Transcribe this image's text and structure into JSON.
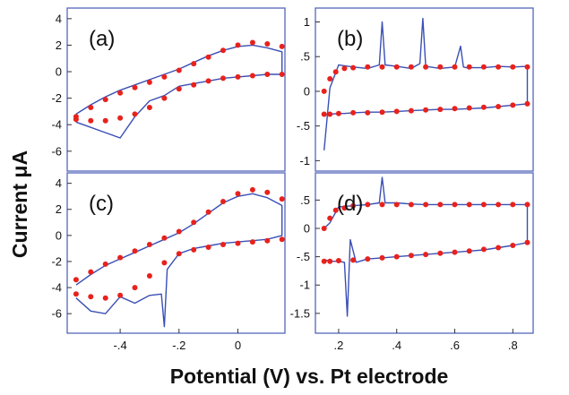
{
  "figure": {
    "ylabel": "Current μA",
    "xlabel": "Potential (V) vs. Pt electrode",
    "colors": {
      "measured": "#3a4fb5",
      "fit": "#e8211c",
      "frame": "#5566bb"
    }
  },
  "chart_data": [
    {
      "type": "line",
      "label": "(a)",
      "xlim": [
        -0.58,
        0.16
      ],
      "ylim": [
        -7.5,
        4.8
      ],
      "yticks": [
        4,
        2,
        0,
        -2,
        -4,
        -6
      ],
      "xticks": [],
      "series": [
        {
          "role": "measured",
          "style": "line",
          "x": [
            -0.55,
            -0.5,
            -0.45,
            -0.4,
            -0.35,
            -0.3,
            -0.25,
            -0.2,
            -0.15,
            -0.1,
            -0.05,
            0.0,
            0.05,
            0.1,
            0.15,
            0.15,
            0.1,
            0.05,
            0.0,
            -0.05,
            -0.1,
            -0.15,
            -0.2,
            -0.25,
            -0.3,
            -0.35,
            -0.4,
            -0.45,
            -0.5,
            -0.55
          ],
          "y": [
            -3.2,
            -2.5,
            -1.9,
            -1.4,
            -1.0,
            -0.6,
            -0.2,
            0.2,
            0.7,
            1.2,
            1.6,
            1.9,
            2.0,
            1.8,
            1.5,
            -0.2,
            -0.2,
            -0.3,
            -0.4,
            -0.5,
            -0.7,
            -0.9,
            -1.1,
            -1.8,
            -2.2,
            -3.4,
            -5.0,
            -4.6,
            -4.2,
            -3.8
          ]
        },
        {
          "role": "fit",
          "style": "dots",
          "x": [
            -0.55,
            -0.5,
            -0.45,
            -0.4,
            -0.35,
            -0.3,
            -0.25,
            -0.2,
            -0.15,
            -0.1,
            -0.05,
            0.0,
            0.05,
            0.1,
            0.15,
            0.15,
            0.1,
            0.05,
            0.0,
            -0.05,
            -0.1,
            -0.15,
            -0.2,
            -0.25,
            -0.3,
            -0.35,
            -0.4,
            -0.45,
            -0.5,
            -0.55
          ],
          "y": [
            -3.4,
            -2.7,
            -2.1,
            -1.6,
            -1.2,
            -0.8,
            -0.4,
            0.1,
            0.6,
            1.1,
            1.6,
            2.0,
            2.2,
            2.1,
            1.9,
            -0.2,
            -0.2,
            -0.3,
            -0.4,
            -0.5,
            -0.7,
            -1.0,
            -1.3,
            -2.0,
            -2.7,
            -3.2,
            -3.5,
            -3.7,
            -3.7,
            -3.6
          ]
        }
      ]
    },
    {
      "type": "line",
      "label": "(b)",
      "xlim": [
        0.12,
        0.87
      ],
      "ylim": [
        -1.15,
        1.2
      ],
      "yticks": [
        1,
        0.5,
        0,
        -0.5,
        -1
      ],
      "xticks": [],
      "series": [
        {
          "role": "measured",
          "style": "line",
          "x": [
            0.15,
            0.17,
            0.2,
            0.25,
            0.3,
            0.34,
            0.35,
            0.36,
            0.4,
            0.45,
            0.48,
            0.49,
            0.5,
            0.55,
            0.6,
            0.62,
            0.63,
            0.64,
            0.7,
            0.75,
            0.8,
            0.85,
            0.85,
            0.8,
            0.75,
            0.7,
            0.65,
            0.6,
            0.55,
            0.5,
            0.45,
            0.4,
            0.35,
            0.3,
            0.25,
            0.22,
            0.2,
            0.17,
            0.15
          ],
          "y": [
            -0.85,
            0.05,
            0.38,
            0.35,
            0.33,
            0.38,
            1.0,
            0.38,
            0.36,
            0.33,
            0.4,
            1.05,
            0.36,
            0.33,
            0.35,
            0.65,
            0.35,
            0.34,
            0.34,
            0.36,
            0.35,
            0.36,
            -0.18,
            -0.2,
            -0.22,
            -0.24,
            -0.25,
            -0.26,
            -0.26,
            -0.27,
            -0.28,
            -0.29,
            -0.3,
            -0.3,
            -0.31,
            -0.32,
            -0.32,
            -0.33,
            -0.33
          ]
        },
        {
          "role": "fit",
          "style": "dots",
          "x": [
            0.15,
            0.17,
            0.19,
            0.22,
            0.25,
            0.3,
            0.35,
            0.4,
            0.45,
            0.5,
            0.55,
            0.6,
            0.65,
            0.7,
            0.75,
            0.8,
            0.85,
            0.85,
            0.8,
            0.75,
            0.7,
            0.65,
            0.6,
            0.55,
            0.5,
            0.45,
            0.4,
            0.35,
            0.3,
            0.25,
            0.2,
            0.17,
            0.15
          ],
          "y": [
            0.0,
            0.18,
            0.28,
            0.33,
            0.34,
            0.35,
            0.35,
            0.35,
            0.35,
            0.35,
            0.35,
            0.35,
            0.35,
            0.35,
            0.35,
            0.35,
            0.35,
            -0.18,
            -0.2,
            -0.22,
            -0.23,
            -0.24,
            -0.25,
            -0.26,
            -0.27,
            -0.28,
            -0.29,
            -0.3,
            -0.31,
            -0.31,
            -0.32,
            -0.33,
            -0.33
          ]
        }
      ]
    },
    {
      "type": "line",
      "label": "(c)",
      "xlim": [
        -0.58,
        0.16
      ],
      "ylim": [
        -7.5,
        4.8
      ],
      "yticks": [
        4,
        2,
        0,
        -2,
        -4,
        -6
      ],
      "xticks": [
        -0.4,
        -0.2,
        0
      ],
      "series": [
        {
          "role": "measured",
          "style": "line",
          "x": [
            -0.55,
            -0.5,
            -0.45,
            -0.4,
            -0.35,
            -0.3,
            -0.25,
            -0.2,
            -0.15,
            -0.1,
            -0.05,
            0.0,
            0.05,
            0.1,
            0.15,
            0.15,
            0.1,
            0.05,
            0.0,
            -0.05,
            -0.1,
            -0.15,
            -0.2,
            -0.24,
            -0.25,
            -0.26,
            -0.3,
            -0.35,
            -0.4,
            -0.45,
            -0.5,
            -0.55
          ],
          "y": [
            -3.8,
            -3.0,
            -2.3,
            -1.8,
            -1.3,
            -0.8,
            -0.3,
            0.2,
            0.9,
            1.7,
            2.5,
            3.0,
            3.2,
            2.9,
            2.3,
            0.0,
            -0.3,
            -0.4,
            -0.5,
            -0.6,
            -0.8,
            -1.0,
            -1.4,
            -2.6,
            -7.0,
            -4.5,
            -4.6,
            -5.2,
            -4.7,
            -6.0,
            -5.8,
            -4.8
          ]
        },
        {
          "role": "fit",
          "style": "dots",
          "x": [
            -0.55,
            -0.5,
            -0.45,
            -0.4,
            -0.35,
            -0.3,
            -0.25,
            -0.2,
            -0.15,
            -0.1,
            -0.05,
            0.0,
            0.05,
            0.1,
            0.15,
            0.15,
            0.1,
            0.05,
            0.0,
            -0.05,
            -0.1,
            -0.15,
            -0.2,
            -0.25,
            -0.3,
            -0.35,
            -0.4,
            -0.45,
            -0.5,
            -0.55
          ],
          "y": [
            -3.4,
            -2.8,
            -2.2,
            -1.7,
            -1.2,
            -0.7,
            -0.2,
            0.3,
            1.0,
            1.8,
            2.6,
            3.2,
            3.5,
            3.3,
            2.8,
            -0.3,
            -0.4,
            -0.5,
            -0.6,
            -0.7,
            -0.9,
            -1.1,
            -1.4,
            -2.1,
            -3.1,
            -4.0,
            -4.6,
            -4.8,
            -4.7,
            -4.5
          ]
        }
      ]
    },
    {
      "type": "line",
      "label": "(d)",
      "xlim": [
        0.12,
        0.87
      ],
      "ylim": [
        -1.85,
        0.98
      ],
      "yticks": [
        0.5,
        0,
        -0.5,
        -1,
        -1.5
      ],
      "xticks": [
        0.2,
        0.4,
        0.6,
        0.8
      ],
      "series": [
        {
          "role": "measured",
          "style": "line",
          "x": [
            0.15,
            0.17,
            0.2,
            0.25,
            0.3,
            0.34,
            0.35,
            0.36,
            0.4,
            0.45,
            0.5,
            0.55,
            0.6,
            0.65,
            0.7,
            0.75,
            0.8,
            0.85,
            0.85,
            0.8,
            0.75,
            0.7,
            0.65,
            0.6,
            0.55,
            0.5,
            0.45,
            0.4,
            0.35,
            0.3,
            0.26,
            0.24,
            0.23,
            0.22,
            0.2,
            0.17,
            0.15
          ],
          "y": [
            0.0,
            0.1,
            0.38,
            0.4,
            0.42,
            0.45,
            0.9,
            0.45,
            0.45,
            0.43,
            0.42,
            0.42,
            0.42,
            0.42,
            0.42,
            0.42,
            0.42,
            0.42,
            -0.25,
            -0.3,
            -0.34,
            -0.38,
            -0.4,
            -0.42,
            -0.44,
            -0.46,
            -0.48,
            -0.5,
            -0.52,
            -0.54,
            -0.6,
            -0.2,
            -1.55,
            -0.6,
            -0.58,
            -0.58,
            -0.55
          ]
        },
        {
          "role": "fit",
          "style": "dots",
          "x": [
            0.15,
            0.17,
            0.19,
            0.22,
            0.25,
            0.3,
            0.35,
            0.4,
            0.45,
            0.5,
            0.55,
            0.6,
            0.65,
            0.7,
            0.75,
            0.8,
            0.85,
            0.85,
            0.8,
            0.75,
            0.7,
            0.65,
            0.6,
            0.55,
            0.5,
            0.45,
            0.4,
            0.35,
            0.3,
            0.25,
            0.2,
            0.17,
            0.15
          ],
          "y": [
            0.0,
            0.18,
            0.32,
            0.36,
            0.4,
            0.42,
            0.42,
            0.42,
            0.42,
            0.42,
            0.42,
            0.42,
            0.42,
            0.42,
            0.42,
            0.42,
            0.42,
            -0.25,
            -0.3,
            -0.34,
            -0.37,
            -0.4,
            -0.42,
            -0.44,
            -0.46,
            -0.48,
            -0.5,
            -0.52,
            -0.54,
            -0.56,
            -0.57,
            -0.58,
            -0.58
          ]
        }
      ]
    }
  ]
}
